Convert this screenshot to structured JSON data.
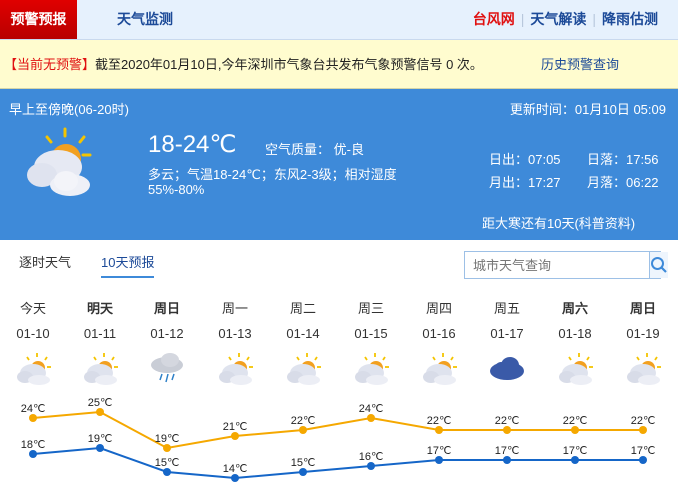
{
  "nav": {
    "tabs": [
      "预警预报",
      "天气监测"
    ],
    "links": [
      "台风网",
      "天气解读",
      "降雨估测"
    ],
    "link_colors": [
      "#e01010",
      "#1c4a98",
      "#1c4a98"
    ]
  },
  "warning": {
    "status": "【当前无预警】",
    "text": "截至2020年01月10日,今年深圳市气象台共发布气象预警信号 0 次。",
    "history_link": "历史预警查询"
  },
  "today": {
    "period": "早上至傍晚(06-20时)",
    "update": "更新时间：01月10日 05:09",
    "temp": "18-24℃",
    "aqi": "空气质量： 优-良",
    "desc1": "多云；气温18-24℃；东风2-3级；相对湿度",
    "desc2": "55%-80%",
    "sunrise": "日出：07:05",
    "sunset": "日落：17:56",
    "moonrise": "月出：17:27",
    "moonset": "月落：06:22",
    "solar_term": "距大寒还有10天(科普资料)",
    "icon": "partly-cloudy-icon"
  },
  "forecast_tabs": [
    "逐时天气",
    "10天预报"
  ],
  "search": {
    "placeholder": "城市天气查询"
  },
  "days": [
    {
      "w": "今天",
      "d": "01-10",
      "icon": "partly-cloudy",
      "bold": false
    },
    {
      "w": "明天",
      "d": "01-11",
      "icon": "partly-cloudy",
      "bold": true
    },
    {
      "w": "周日",
      "d": "01-12",
      "icon": "light-rain",
      "bold": true
    },
    {
      "w": "周一",
      "d": "01-13",
      "icon": "partly-cloudy",
      "bold": false
    },
    {
      "w": "周二",
      "d": "01-14",
      "icon": "partly-cloudy",
      "bold": false
    },
    {
      "w": "周三",
      "d": "01-15",
      "icon": "partly-cloudy",
      "bold": false
    },
    {
      "w": "周四",
      "d": "01-16",
      "icon": "partly-cloudy",
      "bold": false
    },
    {
      "w": "周五",
      "d": "01-17",
      "icon": "overcast",
      "bold": false
    },
    {
      "w": "周六",
      "d": "01-18",
      "icon": "partly-cloudy",
      "bold": true
    },
    {
      "w": "周日",
      "d": "01-19",
      "icon": "partly-cloudy",
      "bold": true
    }
  ],
  "chart_data": {
    "type": "line",
    "categories": [
      "01-10",
      "01-11",
      "01-12",
      "01-13",
      "01-14",
      "01-15",
      "01-16",
      "01-17",
      "01-18",
      "01-19"
    ],
    "series": [
      {
        "values": [
          24,
          25,
          19,
          21,
          22,
          24,
          22,
          22,
          22,
          22
        ],
        "color": "#f5a800"
      },
      {
        "values": [
          18,
          19,
          15,
          14,
          15,
          16,
          17,
          17,
          17,
          17
        ],
        "color": "#1566c8"
      }
    ],
    "unit": "℃"
  }
}
